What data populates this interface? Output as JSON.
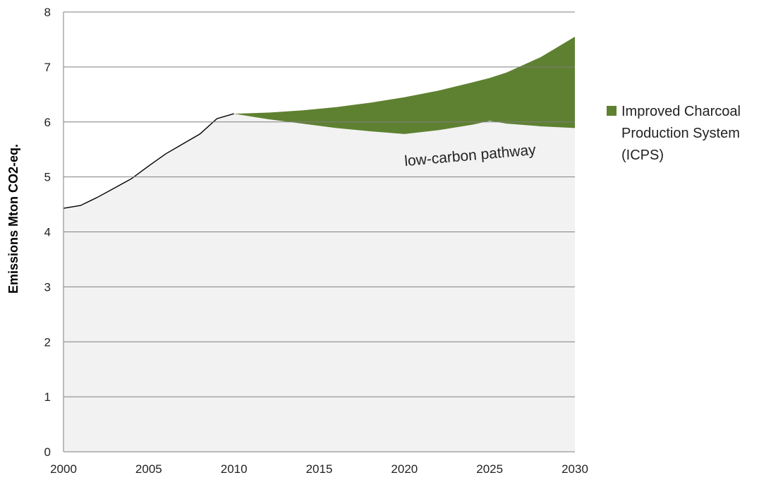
{
  "chart_data": {
    "type": "area",
    "title": "",
    "xlabel": "",
    "ylabel": "Emissions Mton CO2-eq.",
    "xlim": [
      2000,
      2030
    ],
    "ylim": [
      0,
      8
    ],
    "x_ticks": [
      2000,
      2005,
      2010,
      2015,
      2020,
      2025,
      2030
    ],
    "y_ticks": [
      0,
      1,
      2,
      3,
      4,
      5,
      6,
      7,
      8
    ],
    "grid": "horizontal",
    "legend_position": "right",
    "series": [
      {
        "name": "low-carbon pathway",
        "color": "#f2f2f2",
        "x": [
          2000,
          2001,
          2002,
          2003,
          2004,
          2005,
          2006,
          2007,
          2008,
          2009,
          2010,
          2012,
          2014,
          2016,
          2018,
          2020,
          2022,
          2024,
          2025,
          2026,
          2028,
          2030
        ],
        "values": [
          4.43,
          4.48,
          4.63,
          4.8,
          4.97,
          5.2,
          5.42,
          5.6,
          5.78,
          6.06,
          6.15,
          6.05,
          5.97,
          5.89,
          5.83,
          5.78,
          5.85,
          5.95,
          6.02,
          5.97,
          5.92,
          5.89
        ]
      },
      {
        "name": "Improved Charcoal Production System (ICPS)",
        "color": "#5e8131",
        "x": [
          2010,
          2012,
          2014,
          2016,
          2018,
          2020,
          2022,
          2024,
          2025,
          2026,
          2028,
          2030
        ],
        "upper": [
          6.15,
          6.17,
          6.21,
          6.27,
          6.35,
          6.45,
          6.57,
          6.72,
          6.8,
          6.9,
          7.18,
          7.55
        ]
      }
    ],
    "legend": [
      {
        "label_lines": [
          "Improved Charcoal",
          "Production System",
          "(ICPS)"
        ],
        "color": "#5e8131"
      }
    ],
    "annotations": [
      {
        "text": "low-carbon pathway"
      }
    ],
    "colors": {
      "gridline": "#7f7f7f",
      "axis": "#7f7f7f",
      "history_line": "#000000"
    }
  }
}
